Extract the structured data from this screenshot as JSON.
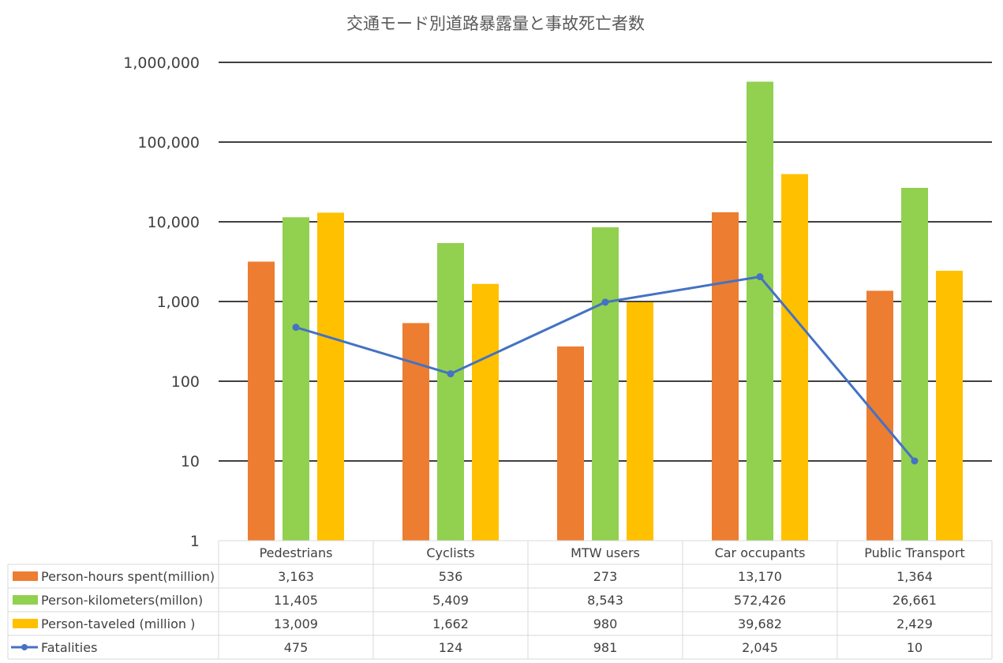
{
  "chart_data": {
    "type": "bar",
    "title": "交通モード別道路暴露量と事故死亡者数",
    "y_scale": "log",
    "ylim": [
      1,
      1000000
    ],
    "grid": true,
    "legend_placement": "data-table-left",
    "y_ticks": [
      "1",
      "10",
      "100",
      "1,000",
      "10,000",
      "100,000",
      "1,000,000"
    ],
    "categories": [
      "Pedestrians",
      "Cyclists",
      "MTW users",
      "Car occupants",
      "Public Transport"
    ],
    "series": [
      {
        "name": "Person-hours spent(million)",
        "type": "bar",
        "color": "#ED7D31",
        "values": [
          3163,
          536,
          273,
          13170,
          1364
        ],
        "labels": [
          "3,163",
          "536",
          "273",
          "13,170",
          "1,364"
        ]
      },
      {
        "name": "Person-kilometers(millon)",
        "type": "bar",
        "color": "#92D050",
        "values": [
          11405,
          5409,
          8543,
          572426,
          26661
        ],
        "labels": [
          "11,405",
          "5,409",
          "8,543",
          "572,426",
          "26,661"
        ]
      },
      {
        "name": "Person-taveled (million )",
        "type": "bar",
        "color": "#FFC000",
        "values": [
          13009,
          1662,
          980,
          39682,
          2429
        ],
        "labels": [
          "13,009",
          "1,662",
          "980",
          "39,682",
          "2,429"
        ]
      },
      {
        "name": "Fatalities",
        "type": "line",
        "color": "#4472C4",
        "values": [
          475,
          124,
          981,
          2045,
          10
        ],
        "labels": [
          "475",
          "124",
          "981",
          "2,045",
          "10"
        ]
      }
    ]
  }
}
